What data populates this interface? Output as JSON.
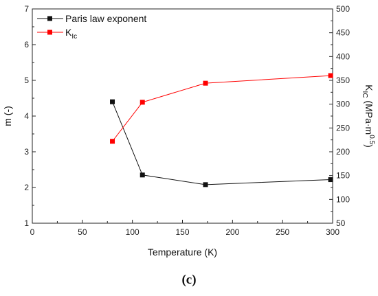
{
  "chart_data": {
    "type": "line",
    "x": [
      80,
      110,
      173,
      298
    ],
    "xlabel": "Temperature (K)",
    "xlim": [
      0,
      300
    ],
    "xticks": [
      0,
      50,
      100,
      150,
      200,
      250,
      300
    ],
    "ylabel_left": "m (-)",
    "ylim_left": [
      1,
      7
    ],
    "yticks_left": [
      1,
      2,
      3,
      4,
      5,
      6,
      7
    ],
    "ylabel_right_main": "K",
    "ylabel_right_sub": "IC",
    "ylabel_right_rest": " (MPa·m",
    "ylabel_right_sup": "0.5",
    "ylabel_right_end": ")",
    "ylim_right": [
      50,
      500
    ],
    "yticks_right": [
      50,
      100,
      150,
      200,
      250,
      300,
      350,
      400,
      450,
      500
    ],
    "series": [
      {
        "name": "Paris law exponent",
        "axis": "left",
        "color": "#111111",
        "values": [
          4.4,
          2.35,
          2.08,
          2.22
        ]
      },
      {
        "name_main": "K",
        "name_sub": "Ic",
        "axis": "right",
        "color": "#ff0000",
        "values": [
          222,
          304,
          344,
          360
        ]
      }
    ],
    "legend_position": "top-left",
    "grid": false
  },
  "caption": "(c)"
}
